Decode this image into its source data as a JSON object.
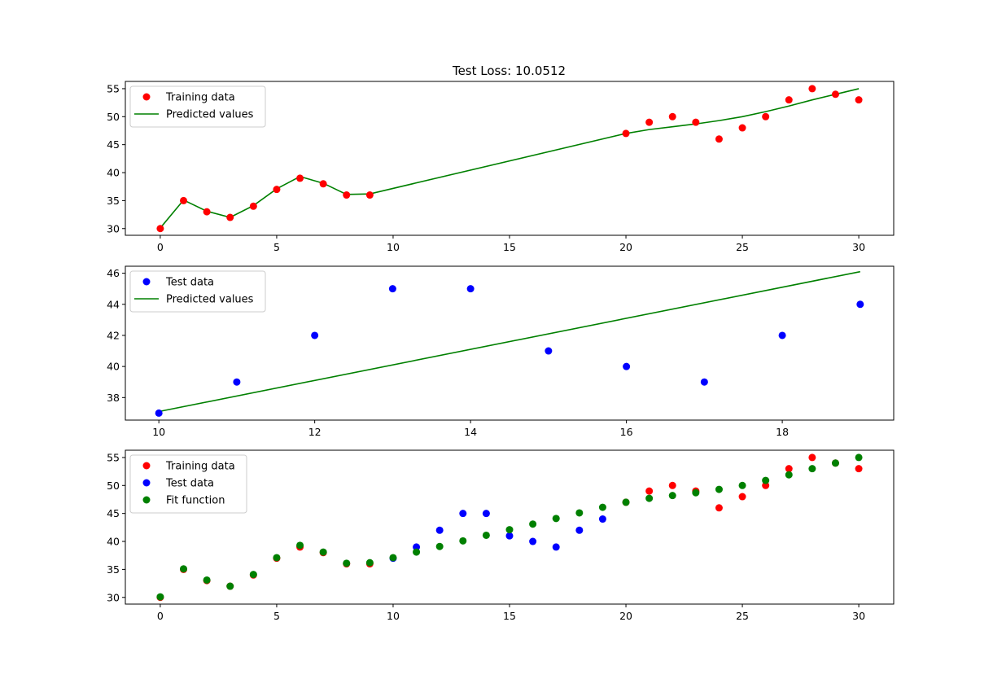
{
  "figure": {
    "title": "Test Loss: 10.0512"
  },
  "chart_data": [
    {
      "type": "line",
      "title": "Test Loss: 10.0512",
      "xlim": [
        -1.5,
        31.5
      ],
      "ylim": [
        28.8,
        56.3
      ],
      "xticks": [
        0,
        5,
        10,
        15,
        20,
        25,
        30
      ],
      "yticks": [
        30,
        35,
        40,
        45,
        50,
        55
      ],
      "grid": false,
      "legend_position": "upper-left",
      "series": [
        {
          "name": "Training data",
          "style": "scatter",
          "color": "#ff0000",
          "x": [
            0,
            1,
            2,
            3,
            4,
            5,
            6,
            7,
            8,
            9,
            20,
            21,
            22,
            23,
            24,
            25,
            26,
            27,
            28,
            29,
            30
          ],
          "y": [
            30,
            35,
            33,
            32,
            34,
            37,
            39,
            38,
            36,
            36,
            47,
            49,
            50,
            49,
            46,
            48,
            50,
            53,
            55,
            54,
            53
          ]
        },
        {
          "name": "Predicted values",
          "style": "line",
          "color": "#008000",
          "x": [
            0,
            1,
            2,
            3,
            4,
            5,
            6,
            7,
            8,
            9,
            20,
            21,
            22,
            23,
            24,
            25,
            26,
            27,
            28,
            29,
            30
          ],
          "y": [
            30.1,
            35.1,
            33.1,
            32.0,
            34.1,
            37.1,
            39.3,
            38.1,
            36.1,
            36.2,
            47.0,
            47.7,
            48.2,
            48.7,
            49.3,
            50.0,
            50.9,
            51.9,
            53.0,
            54.0,
            55.0
          ]
        }
      ]
    },
    {
      "type": "line",
      "xlim": [
        9.57,
        19.43
      ],
      "ylim": [
        36.55,
        46.45
      ],
      "xticks": [
        10,
        12,
        14,
        16,
        18
      ],
      "yticks": [
        38,
        40,
        42,
        44,
        46
      ],
      "grid": false,
      "legend_position": "upper-left",
      "series": [
        {
          "name": "Test data",
          "style": "scatter",
          "color": "#0000ff",
          "x": [
            10,
            11,
            12,
            13,
            14,
            15,
            16,
            17,
            18,
            19
          ],
          "y": [
            37,
            39,
            42,
            45,
            45,
            41,
            40,
            39,
            42,
            44
          ]
        },
        {
          "name": "Predicted values",
          "style": "line",
          "color": "#008000",
          "x": [
            10,
            19
          ],
          "y": [
            37.1,
            46.1
          ]
        }
      ]
    },
    {
      "type": "scatter",
      "xlim": [
        -1.5,
        31.5
      ],
      "ylim": [
        28.8,
        56.3
      ],
      "xticks": [
        0,
        5,
        10,
        15,
        20,
        25,
        30
      ],
      "yticks": [
        30,
        35,
        40,
        45,
        50,
        55
      ],
      "grid": false,
      "legend_position": "upper-left",
      "series": [
        {
          "name": "Training data",
          "style": "scatter",
          "color": "#ff0000",
          "x": [
            0,
            1,
            2,
            3,
            4,
            5,
            6,
            7,
            8,
            9,
            20,
            21,
            22,
            23,
            24,
            25,
            26,
            27,
            28,
            29,
            30
          ],
          "y": [
            30,
            35,
            33,
            32,
            34,
            37,
            39,
            38,
            36,
            36,
            47,
            49,
            50,
            49,
            46,
            48,
            50,
            53,
            55,
            54,
            53
          ]
        },
        {
          "name": "Test data",
          "style": "scatter",
          "color": "#0000ff",
          "x": [
            10,
            11,
            12,
            13,
            14,
            15,
            16,
            17,
            18,
            19
          ],
          "y": [
            37,
            39,
            42,
            45,
            45,
            41,
            40,
            39,
            42,
            44
          ]
        },
        {
          "name": "Fit function",
          "style": "scatter",
          "color": "#008000",
          "x": [
            0,
            1,
            2,
            3,
            4,
            5,
            6,
            7,
            8,
            9,
            10,
            11,
            12,
            13,
            14,
            15,
            16,
            17,
            18,
            19,
            20,
            21,
            22,
            23,
            24,
            25,
            26,
            27,
            28,
            29,
            30
          ],
          "y": [
            30.1,
            35.1,
            33.1,
            32.0,
            34.1,
            37.1,
            39.3,
            38.1,
            36.1,
            36.2,
            37.1,
            38.1,
            39.1,
            40.1,
            41.1,
            42.1,
            43.1,
            44.1,
            45.1,
            46.1,
            47.0,
            47.7,
            48.2,
            48.7,
            49.3,
            50.0,
            50.9,
            51.9,
            53.0,
            54.0,
            55.0
          ]
        }
      ]
    }
  ]
}
